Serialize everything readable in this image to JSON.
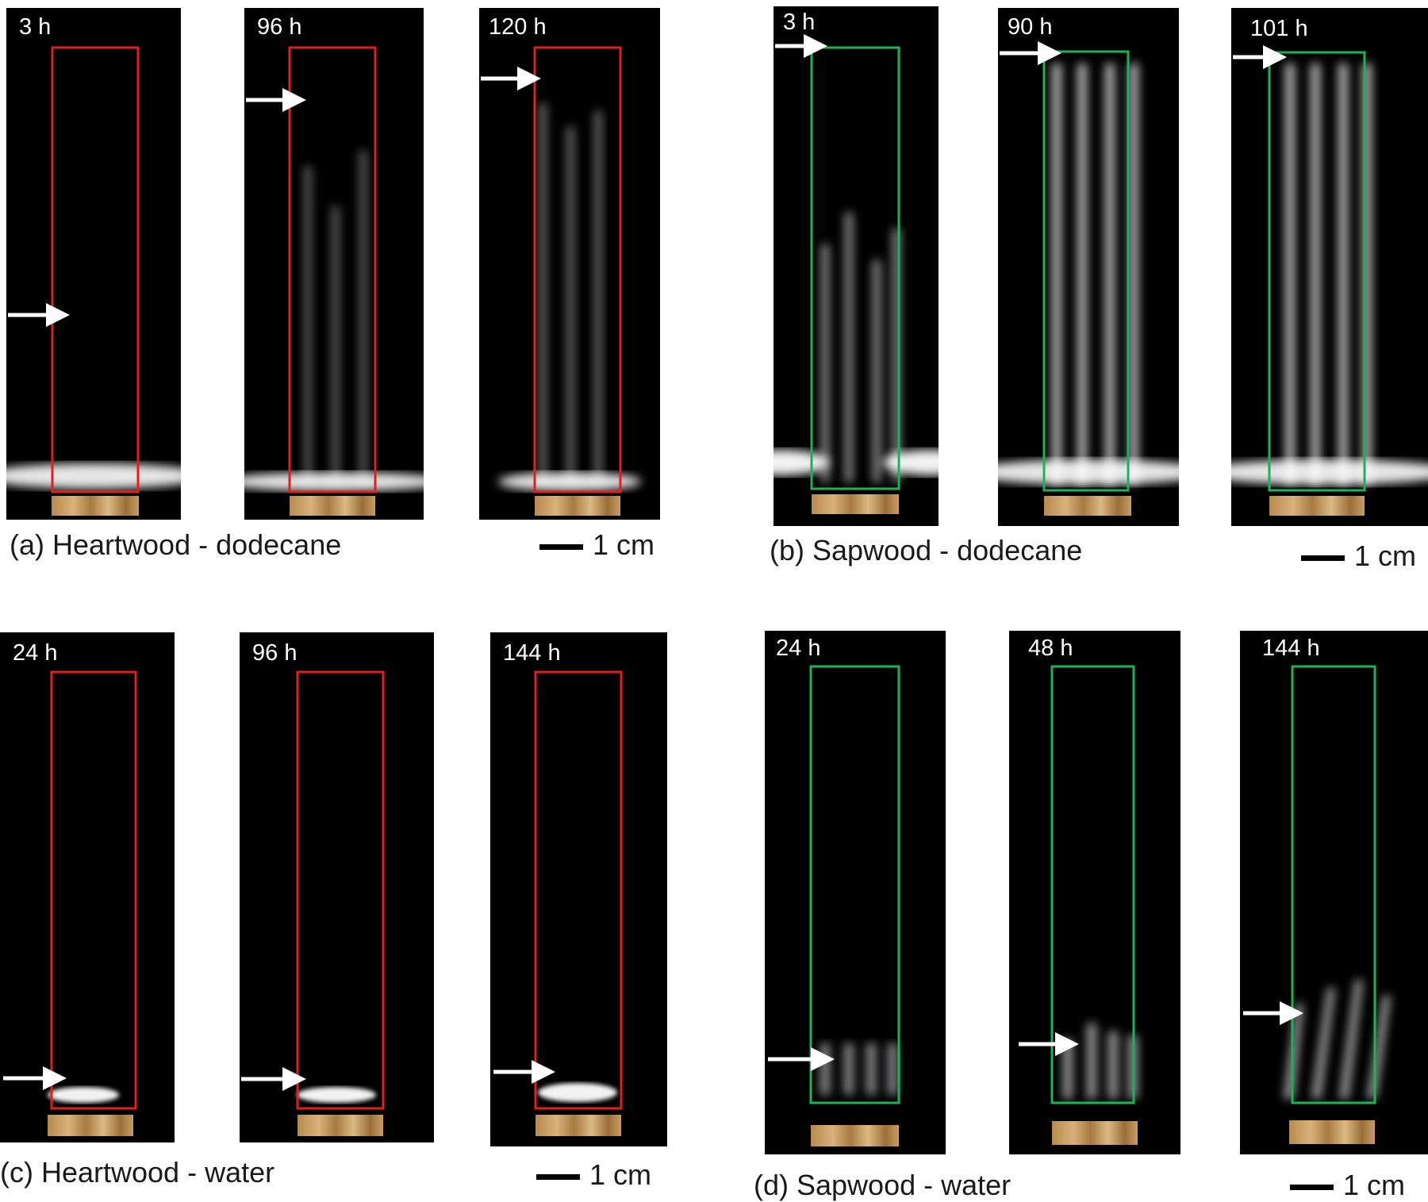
{
  "colors": {
    "heartwood_box": "#e0201e",
    "sapwood_box": "#1fb05a",
    "background": "#000000",
    "arrow": "#ffffff"
  },
  "panels": {
    "a": {
      "caption": "(a) Heartwood - dodecane",
      "scale_label": "1 cm",
      "times": [
        "3 h",
        "96 h",
        "120 h"
      ]
    },
    "b": {
      "caption": "(b) Sapwood - dodecane",
      "scale_label": "1 cm",
      "times": [
        "3 h",
        "90 h",
        "101 h"
      ]
    },
    "c": {
      "caption": "(c) Heartwood - water",
      "scale_label": "1 cm",
      "times": [
        "24 h",
        "96 h",
        "144 h"
      ]
    },
    "d": {
      "caption": "(d) Sapwood - water",
      "scale_label": "1 cm",
      "times": [
        "24 h",
        "48 h",
        "144 h"
      ]
    }
  }
}
